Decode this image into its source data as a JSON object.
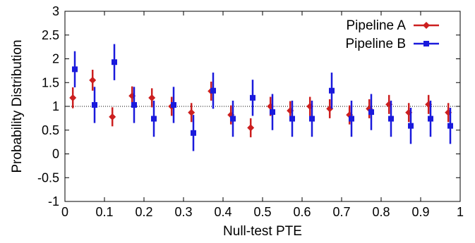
{
  "chart_data": {
    "type": "scatter",
    "xlabel": "Null-test PTE",
    "ylabel": "Probability Distribution",
    "xlim": [
      0,
      1
    ],
    "ylim": [
      -1,
      3
    ],
    "xticks": [
      "0",
      "0.1",
      "0.2",
      "0.3",
      "0.4",
      "0.5",
      "0.6",
      "0.7",
      "0.8",
      "0.9",
      "1"
    ],
    "yticks": [
      "-1",
      "-0.5",
      "0",
      "0.5",
      "1",
      "1.5",
      "2",
      "2.5",
      "3"
    ],
    "reference_line": {
      "y": 1,
      "style": "dotted"
    },
    "legend_position": "top-right",
    "series": [
      {
        "name": "Pipeline A",
        "color": "#cc1f1f",
        "marker": "diamond",
        "x": [
          0.02,
          0.07,
          0.12,
          0.17,
          0.22,
          0.27,
          0.32,
          0.37,
          0.42,
          0.47,
          0.52,
          0.57,
          0.62,
          0.67,
          0.72,
          0.77,
          0.82,
          0.87,
          0.92,
          0.97
        ],
        "y": [
          1.18,
          1.55,
          0.78,
          1.22,
          1.18,
          1.0,
          0.87,
          1.32,
          0.82,
          0.55,
          1.0,
          0.91,
          1.0,
          0.95,
          0.82,
          0.95,
          1.04,
          0.87,
          1.04,
          0.87
        ],
        "err": [
          0.22,
          0.22,
          0.2,
          0.2,
          0.2,
          0.2,
          0.2,
          0.2,
          0.2,
          0.2,
          0.2,
          0.2,
          0.2,
          0.2,
          0.2,
          0.2,
          0.2,
          0.2,
          0.2,
          0.2
        ]
      },
      {
        "name": "Pipeline B",
        "color": "#1a1adc",
        "marker": "square",
        "x": [
          0.025,
          0.075,
          0.125,
          0.175,
          0.225,
          0.275,
          0.325,
          0.375,
          0.425,
          0.475,
          0.525,
          0.575,
          0.625,
          0.675,
          0.725,
          0.775,
          0.825,
          0.875,
          0.925,
          0.975
        ],
        "y": [
          1.78,
          1.03,
          1.93,
          1.03,
          0.74,
          1.03,
          0.44,
          1.33,
          0.74,
          1.18,
          0.88,
          0.74,
          0.74,
          1.33,
          0.74,
          0.88,
          0.74,
          0.59,
          0.74,
          0.59
        ],
        "err": [
          0.38,
          0.38,
          0.38,
          0.38,
          0.38,
          0.38,
          0.38,
          0.38,
          0.38,
          0.38,
          0.38,
          0.38,
          0.38,
          0.38,
          0.38,
          0.38,
          0.38,
          0.38,
          0.38,
          0.38
        ]
      }
    ]
  }
}
